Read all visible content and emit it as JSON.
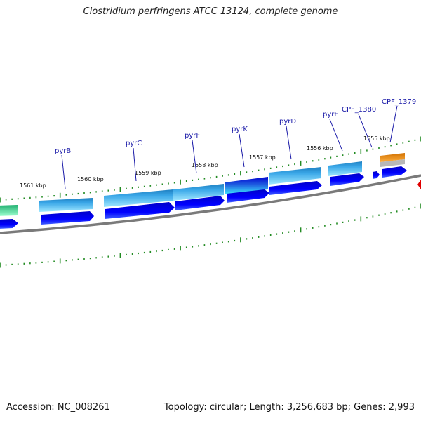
{
  "title": "Clostridium perfringens ATCC 13124, complete genome",
  "accession": "Accession: NC_008261",
  "summary": "Topology: circular; Length: 3,256,683 bp; Genes: 2,993",
  "ruler_labels": [
    "1561 kbp",
    "1560 kbp",
    "1559 kbp",
    "1558 kbp",
    "1557 kbp",
    "1556 kbp",
    "1555 kbp"
  ],
  "gene_labels": [
    "pyrB",
    "pyrC",
    "pyrF",
    "pyrK",
    "pyrD",
    "pyrE",
    "CPF_1380",
    "CPF_1379"
  ],
  "colors": {
    "label_blue": "#1a1aa8",
    "tick_green": "#228b22",
    "cds_blue": "#0000e0",
    "cyan_top": "#3aa7e8",
    "cyan_bottom": "#9fe7ff",
    "teal_cap": "#1f8fb0",
    "green_feature": "#32d08a",
    "orange_feature": "#f08c10",
    "backbone": "#7a7a7a"
  }
}
